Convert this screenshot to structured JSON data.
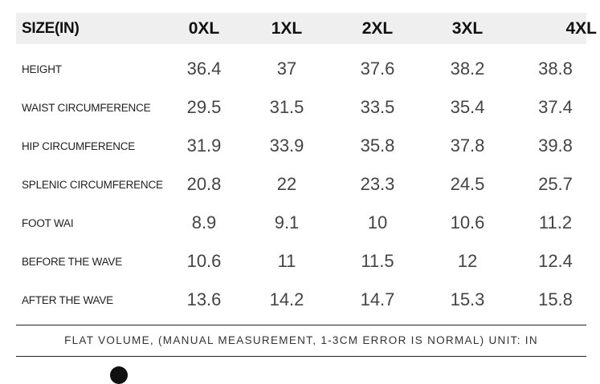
{
  "table": {
    "header_label": "SIZE(IN)",
    "sizes": [
      "0XL",
      "1XL",
      "2XL",
      "3XL",
      "4XL"
    ],
    "rows": [
      {
        "label": "HEIGHT",
        "values": [
          "36.4",
          "37",
          "37.6",
          "38.2",
          "38.8"
        ]
      },
      {
        "label": "WAIST CIRCUMFERENCE",
        "values": [
          "29.5",
          "31.5",
          "33.5",
          "35.4",
          "37.4"
        ]
      },
      {
        "label": "HIP CIRCUMFERENCE",
        "values": [
          "31.9",
          "33.9",
          "35.8",
          "37.8",
          "39.8"
        ]
      },
      {
        "label": "SPLENIC CIRCUMFERENCE",
        "values": [
          "20.8",
          "22",
          "23.3",
          "24.5",
          "25.7"
        ]
      },
      {
        "label": "FOOT WAI",
        "values": [
          "8.9",
          "9.1",
          "10",
          "10.6",
          "11.2"
        ]
      },
      {
        "label": "BEFORE THE WAVE",
        "values": [
          "10.6",
          "11",
          "11.5",
          "12",
          "12.4"
        ]
      },
      {
        "label": "AFTER THE WAVE",
        "values": [
          "13.6",
          "14.2",
          "14.7",
          "15.3",
          "15.8"
        ]
      }
    ]
  },
  "footnote": "FLAT VOLUME, (MANUAL MEASUREMENT, 1-3CM ERROR IS NORMAL) UNIT: IN",
  "colors": {
    "header_background": "#efefef",
    "text": "#333333",
    "divider": "#222222"
  }
}
